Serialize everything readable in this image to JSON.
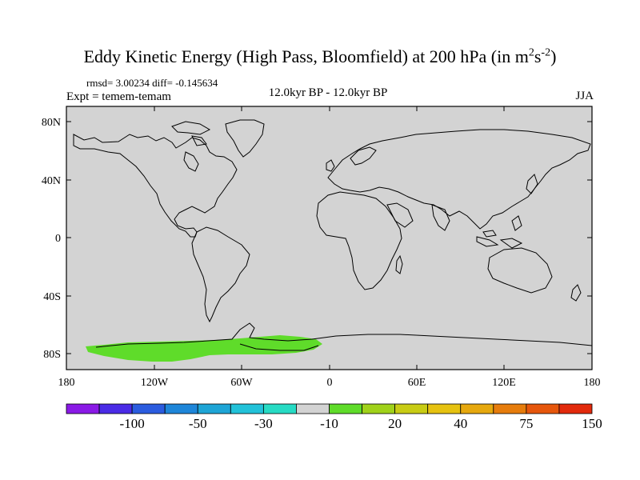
{
  "title": {
    "text": "Eddy Kinetic Energy (High Pass, Bloomfield) at 200 hPa (in m",
    "sup1": "2",
    "mid": "s",
    "sup2": "-2",
    "close": ")"
  },
  "stats": "rmsd= 3.00234  diff= -0.145634",
  "experiment": "Expt = temem-temam",
  "period": "12.0kyr BP - 12.0kyr BP",
  "season": "JJA",
  "map": {
    "background_color": "#d3d3d3",
    "coastline_color": "#000000",
    "lon_ticks": [
      "180",
      "120W",
      "60W",
      "0",
      "60E",
      "120E",
      "180"
    ],
    "lat_ticks": [
      "80N",
      "40N",
      "0",
      "40S",
      "80S"
    ],
    "shaded_region": {
      "description": "positive anomaly band over Antarctic coast",
      "color": "#5fdc2a"
    }
  },
  "colorbar": {
    "colors": [
      "#8a1ae6",
      "#4a2be6",
      "#2b5cdf",
      "#1e86d9",
      "#1ea5d6",
      "#22c2d9",
      "#27dbc4",
      "#d3d3d3",
      "#5fdc2a",
      "#a0d21a",
      "#c8cc14",
      "#e6c210",
      "#e6a80e",
      "#e67c0c",
      "#e6560c",
      "#e22a0c"
    ],
    "labels": [
      "-100",
      "-50",
      "-30",
      "-10",
      "20",
      "40",
      "75",
      "150"
    ]
  }
}
